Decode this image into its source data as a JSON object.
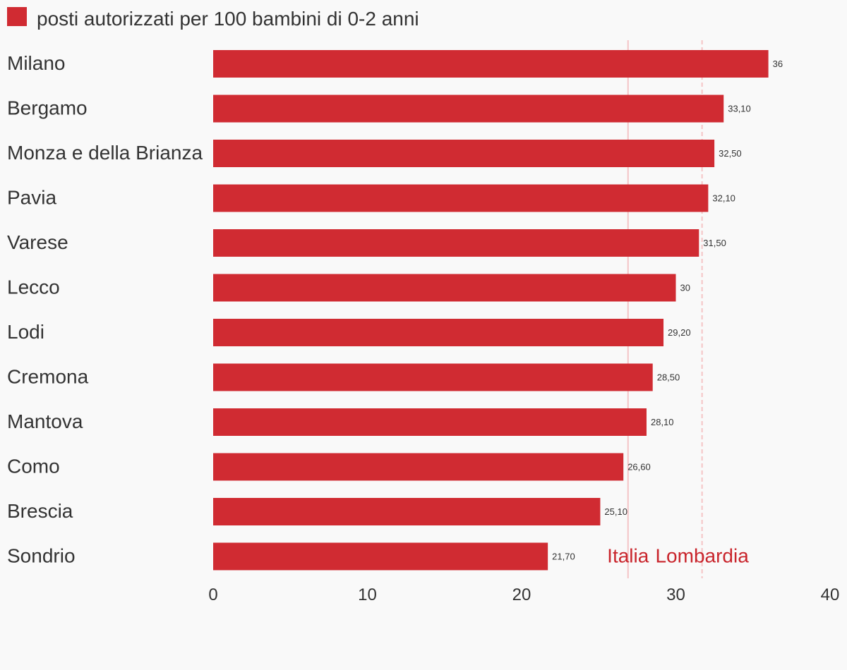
{
  "chart_data": {
    "type": "bar",
    "orientation": "horizontal",
    "series": [
      {
        "name": "posti autorizzati per 100 bambini di 0-2 anni",
        "color": "#d02b32",
        "values": [
          36,
          33.1,
          32.5,
          32.1,
          31.5,
          30,
          29.2,
          28.5,
          28.1,
          26.6,
          25.1,
          21.7
        ],
        "value_labels": [
          "36",
          "33,10",
          "32,50",
          "32,10",
          "31,50",
          "30",
          "29,20",
          "28,50",
          "28,10",
          "26,60",
          "25,10",
          "21,70"
        ]
      }
    ],
    "categories": [
      "Milano",
      "Bergamo",
      "Monza e della Brianza",
      "Pavia",
      "Varese",
      "Lecco",
      "Lodi",
      "Cremona",
      "Mantova",
      "Como",
      "Brescia",
      "Sondrio"
    ],
    "xlim": [
      0,
      40
    ],
    "xticks": [
      {
        "value": 0,
        "label": "0"
      },
      {
        "value": 10,
        "label": "10"
      },
      {
        "value": 20,
        "label": "20"
      },
      {
        "value": 30,
        "label": "30"
      },
      {
        "value": 40,
        "label": "40"
      }
    ],
    "reference_lines": [
      {
        "label": "Italia",
        "value": 26.9,
        "color": "#f5c4c6",
        "style": "solid",
        "label_color": "#c9252c"
      },
      {
        "label": "Lombardia",
        "value": 31.7,
        "color": "#f5c4c6",
        "style": "dashed",
        "label_color": "#c9252c"
      }
    ],
    "legend_position": "top-left",
    "grid": false
  }
}
